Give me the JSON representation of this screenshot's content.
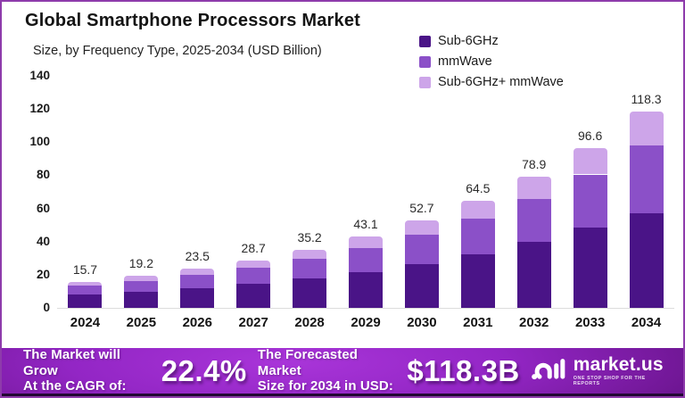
{
  "page": {
    "title": "Global Smartphone Processors Market",
    "subtitle": "Size, by Frequency Type, 2025-2034 (USD Billion)"
  },
  "colors": {
    "sub6": "#4a1487",
    "mmwave": "#8b50c8",
    "combo": "#cda5e9",
    "frame_border": "#8e3bab",
    "banner_center": "#a935d9",
    "banner_edge": "#560c7c",
    "banner_bottom_strip": "#220733",
    "axis_text": "#1a1a1a",
    "baseline_line": "#dddddd"
  },
  "chart_data": {
    "type": "bar",
    "stacked": true,
    "title": "Global Smartphone Processors Market",
    "subtitle": "Size, by Frequency Type, 2025-2034 (USD Billion)",
    "categories": [
      "2024",
      "2025",
      "2026",
      "2027",
      "2028",
      "2029",
      "2030",
      "2031",
      "2032",
      "2033",
      "2034"
    ],
    "series": [
      {
        "name": "Sub-6GHz",
        "color": "#4a1487",
        "values": [
          8.1,
          9.9,
          12.0,
          14.6,
          17.9,
          21.8,
          26.5,
          32.5,
          39.7,
          48.4,
          56.9
        ]
      },
      {
        "name": "mmWave",
        "color": "#8b50c8",
        "values": [
          5.1,
          6.2,
          7.7,
          9.4,
          11.5,
          14.2,
          17.5,
          21.4,
          26.2,
          32.1,
          41.0
        ]
      },
      {
        "name": "Sub-6GHz+ mmWave",
        "color": "#cda5e9",
        "values": [
          2.5,
          3.1,
          3.8,
          4.7,
          5.8,
          7.1,
          8.7,
          10.6,
          13.0,
          16.1,
          20.4
        ]
      }
    ],
    "totals": [
      "15.7",
      "19.2",
      "23.5",
      "28.7",
      "35.2",
      "43.1",
      "52.7",
      "64.5",
      "78.9",
      "96.6",
      "118.3"
    ],
    "xlabel": "",
    "ylabel": "",
    "ylim": [
      0,
      140
    ],
    "yticks": [
      0,
      20,
      40,
      60,
      80,
      100,
      120,
      140
    ],
    "grid": false,
    "legend_position": "top-right"
  },
  "banner": {
    "cagr_label": "The Market will Grow\nAt the CAGR of:",
    "cagr_value": "22.4%",
    "forecast_label": "The Forecasted Market\nSize for 2034 in USD:",
    "forecast_value": "$118.3B",
    "logo_text": "market.us",
    "logo_tagline": "ONE STOP SHOP FOR THE REPORTS"
  }
}
